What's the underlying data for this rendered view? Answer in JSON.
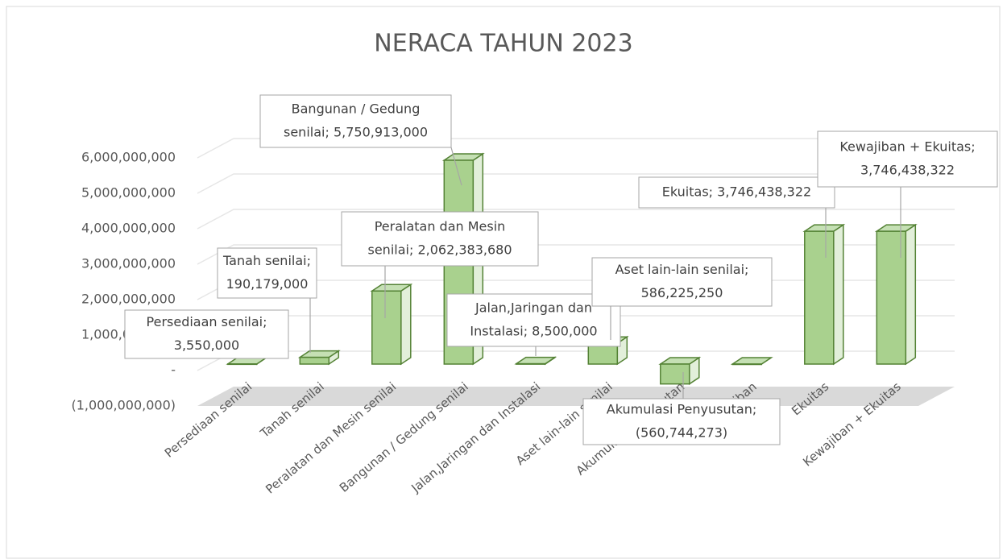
{
  "chart_data": {
    "type": "bar3d",
    "title": "NERACA TAHUN 2023",
    "categories": [
      "Persediaan  senilai",
      "Tanah senilai",
      "Peralatan dan Mesin senilai",
      "Bangunan / Gedung senilai",
      "Jalan,Jaringan dan Instalasi",
      "Aset lain-lain senilai",
      "Akumulasi Penyusutan",
      "Kewajiban",
      "Ekuitas",
      "Kewajiban + Ekuitas"
    ],
    "values": [
      3550000,
      190179000,
      2062383680,
      5750913000,
      8500000,
      586225250,
      -560744273,
      0,
      3746438322,
      3746438322
    ],
    "value_labels": [
      [
        "Persediaan  senilai;",
        "3,550,000"
      ],
      [
        "Tanah senilai;",
        "190,179,000"
      ],
      [
        "Peralatan dan Mesin",
        "senilai;  2,062,383,680"
      ],
      [
        "Bangunan / Gedung",
        "senilai;  5,750,913,000"
      ],
      [
        "Jalan,Jaringan dan",
        "Instalasi;  8,500,000"
      ],
      [
        "Aset lain-lain senilai;",
        "586,225,250"
      ],
      [
        "Akumulasi Penyusutan;",
        "(560,744,273)"
      ],
      null,
      [
        "Ekuitas;  3,746,438,322"
      ],
      [
        "Kewajiban + Ekuitas;",
        "3,746,438,322"
      ]
    ],
    "color": "#a9d18e",
    "ylim": [
      -1000000000,
      6000000000
    ],
    "yticks": [
      {
        "value": -1000000000,
        "label": "(1,000,000,000)"
      },
      {
        "value": 0,
        "label": "-"
      },
      {
        "value": 1000000000,
        "label": "1,000,000,000"
      },
      {
        "value": 2000000000,
        "label": "2,000,000,000"
      },
      {
        "value": 3000000000,
        "label": "3,000,000,000"
      },
      {
        "value": 4000000000,
        "label": "4,000,000,000"
      },
      {
        "value": 5000000000,
        "label": "5,000,000,000"
      },
      {
        "value": 6000000000,
        "label": "6,000,000,000"
      }
    ],
    "grid": true
  }
}
